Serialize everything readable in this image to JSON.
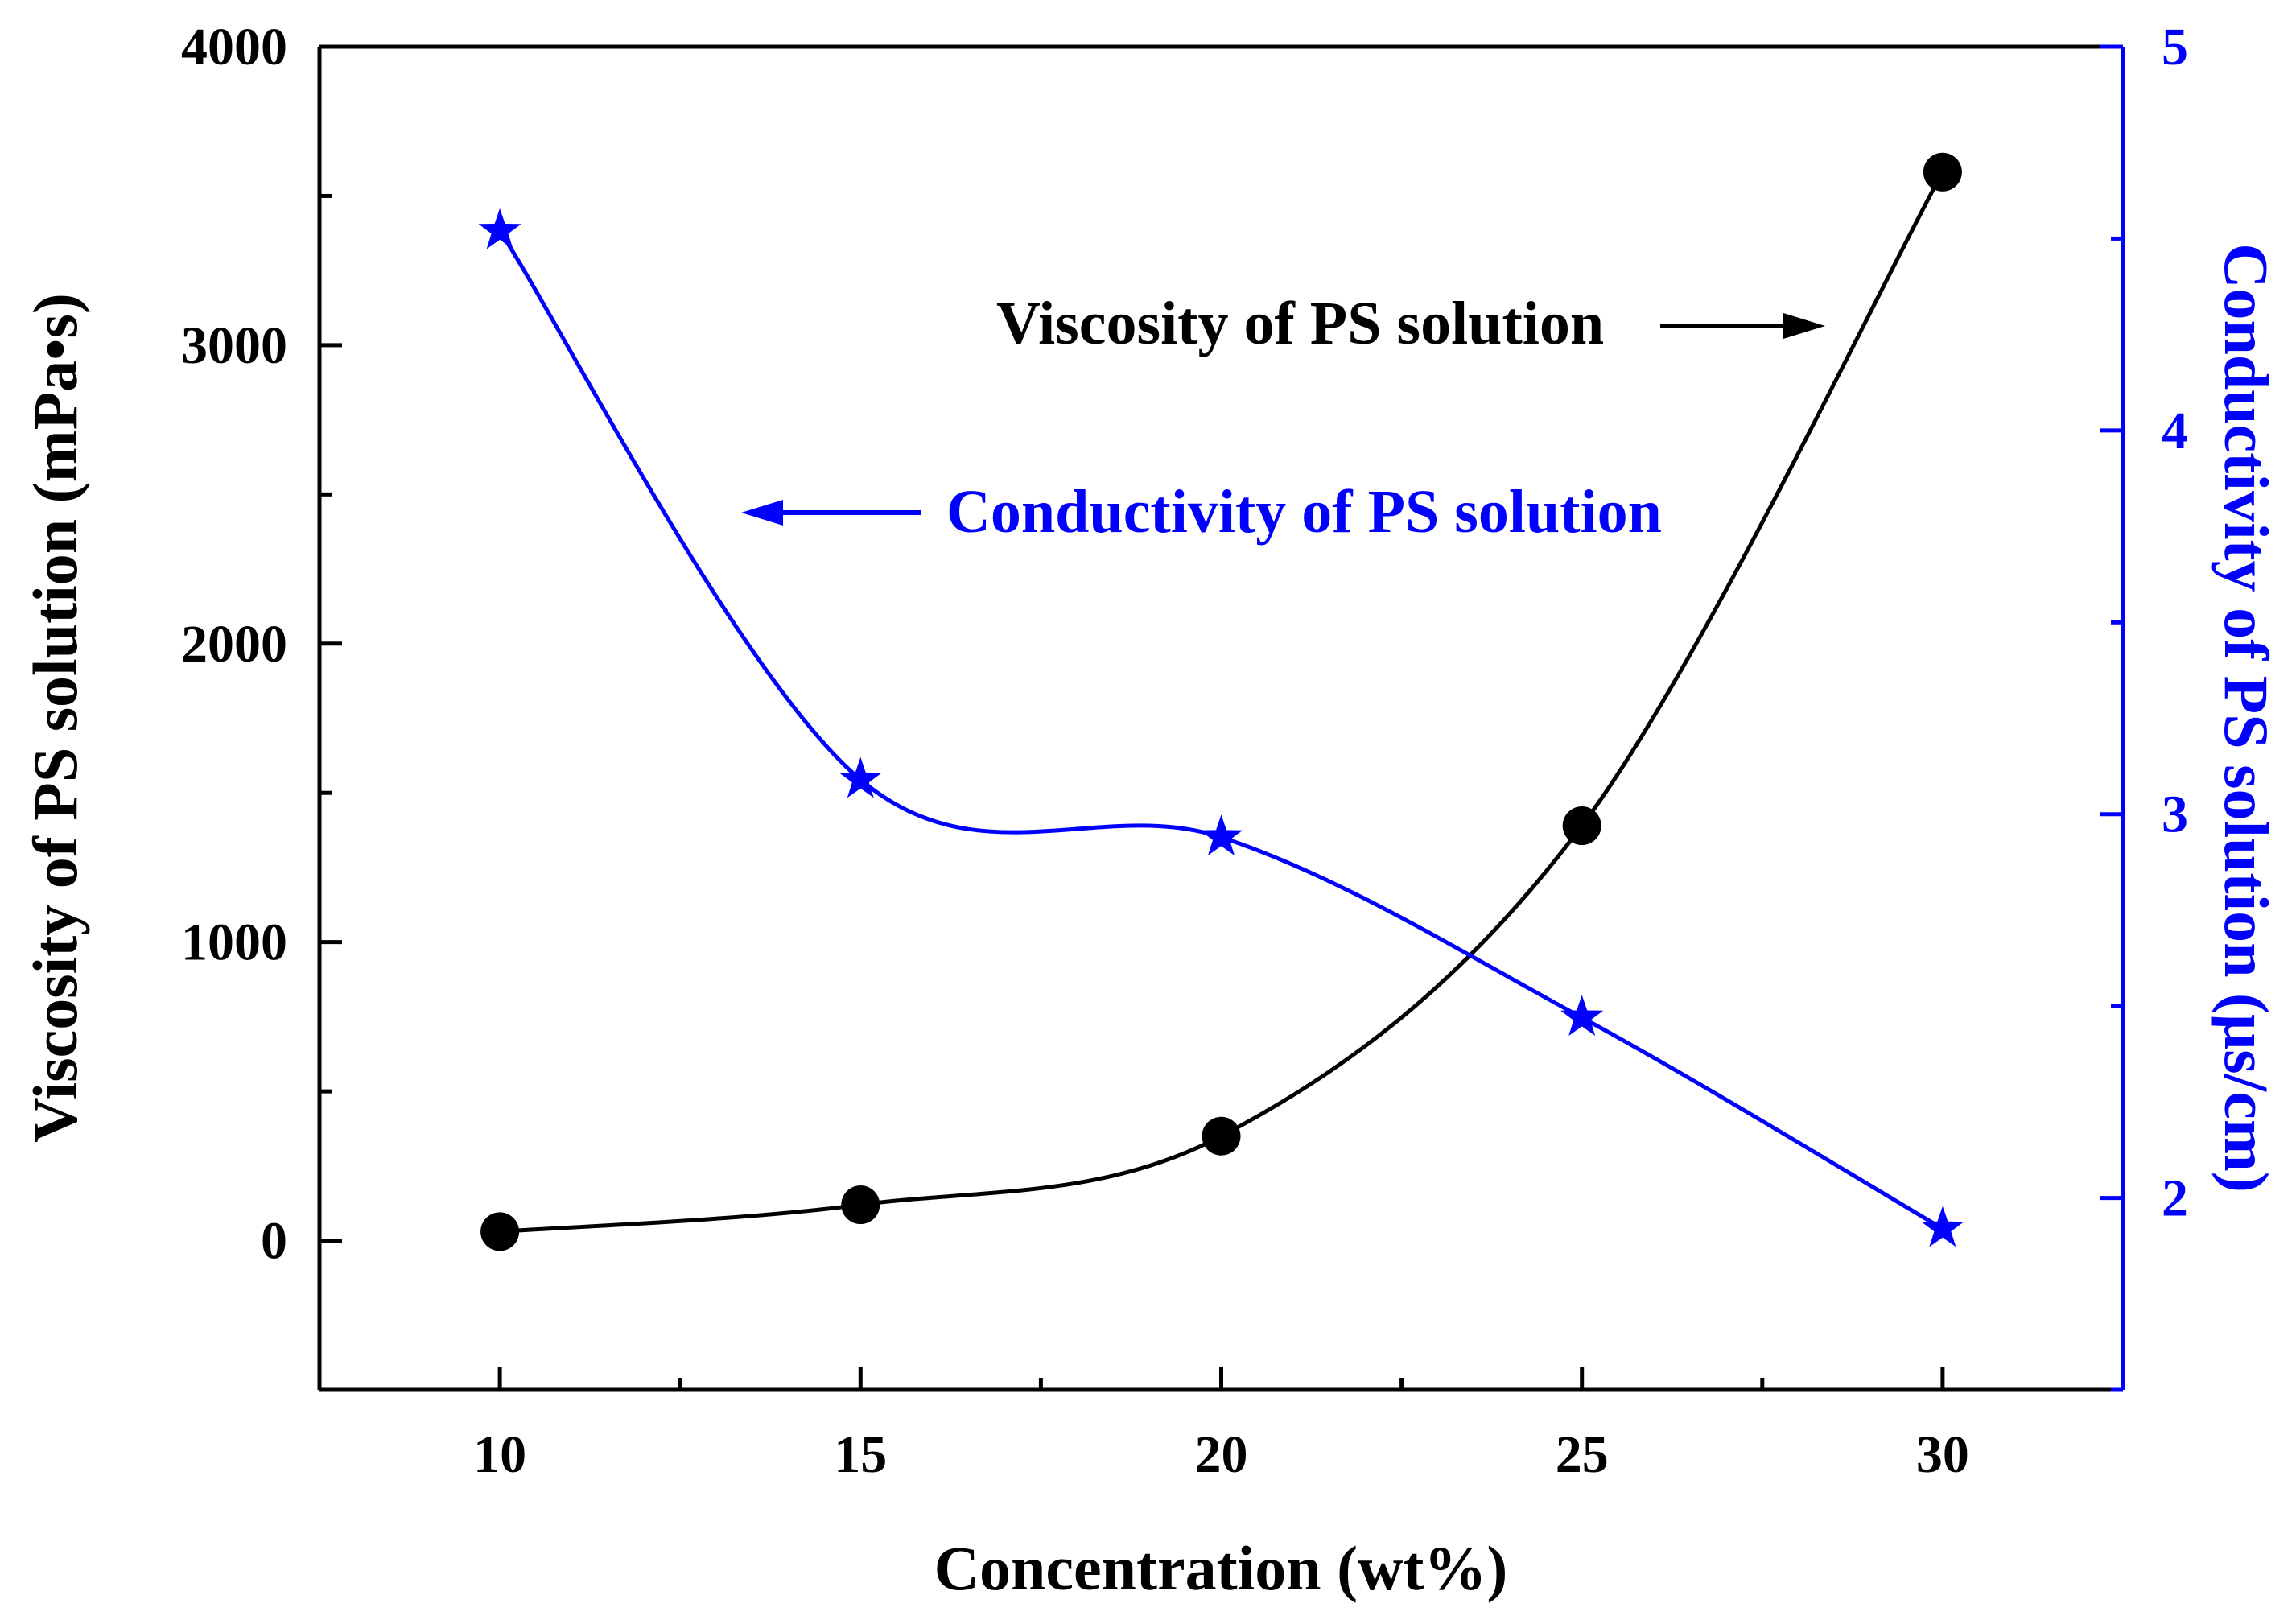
{
  "chart_data": {
    "type": "line",
    "x": [
      10,
      15,
      20,
      25,
      30
    ],
    "xlabel": "Concentration (wt%)",
    "xlim": [
      7.5,
      32.5
    ],
    "xticks": [
      10,
      15,
      20,
      25,
      30
    ],
    "ylabel_left": "Viscosity of PS solution (mPa•s)",
    "ylim_left": [
      -500,
      4000
    ],
    "yticks_left": [
      0,
      1000,
      2000,
      3000,
      4000
    ],
    "ylabel_right": "Conductivity of PS solution (μs/cm)",
    "ylim_right": [
      1.5,
      5
    ],
    "yticks_right": [
      2,
      3,
      4,
      5
    ],
    "series": [
      {
        "name": "Viscosity of PS solution",
        "axis": "left",
        "values": [
          30,
          120,
          350,
          1390,
          3580
        ],
        "marker": "circle",
        "color": "#000000"
      },
      {
        "name": "Conductivity of PS solution",
        "axis": "right",
        "values": [
          4.52,
          3.09,
          2.94,
          2.47,
          1.92
        ],
        "marker": "star",
        "color": "#0000ff"
      }
    ],
    "annotations": [
      {
        "text": "Viscosity of PS solution",
        "arrow": "right",
        "color": "#000000"
      },
      {
        "text": "Conductivity of PS solution",
        "arrow": "left",
        "color": "#0000ff"
      }
    ]
  }
}
